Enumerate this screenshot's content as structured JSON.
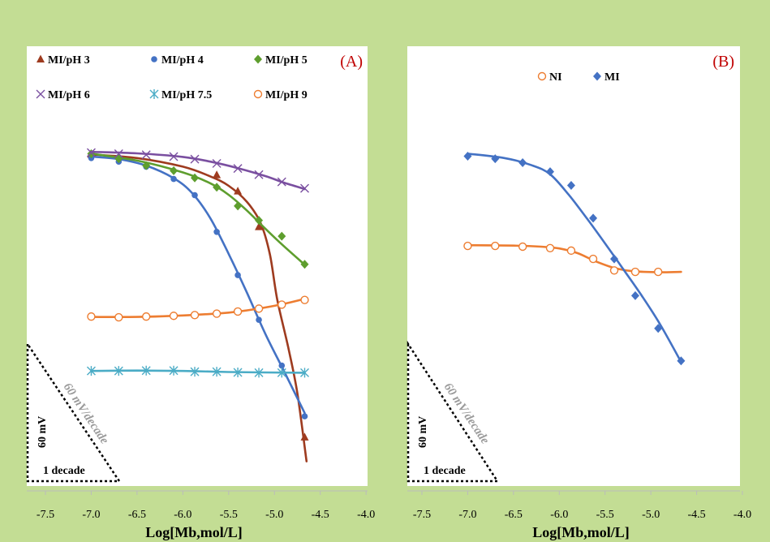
{
  "figure": {
    "background": "#c3dd94",
    "panel_background": "#ffffff",
    "series_colors": {
      "MI/pH 3": "#9e3b1f",
      "MI/pH 4": "#4472c4",
      "MI/pH 5": "#5e9e2e",
      "MI/pH 6": "#7a4fa0",
      "MI/pH 7.5": "#4bacc6",
      "MI/pH 9": "#ed7d31",
      "NI": "#ed7d31",
      "MI": "#4472c4"
    }
  },
  "chart_data": [
    {
      "type": "scatter",
      "panel_label": "(A)",
      "xlabel": "Log[Mb,mol/L]",
      "ylabel": "",
      "xlim": [
        -7.5,
        -4.0
      ],
      "xticks": [
        "-7.5",
        "-7.0",
        "-6.5",
        "-6.0",
        "-5.5",
        "-5.0",
        "-4.5",
        "-4.0"
      ],
      "ylim": [
        0,
        100
      ],
      "legend_position": "top",
      "slope_triangle": {
        "slope_label": "60 mV/decade",
        "height_label": "60 mV",
        "width_label": "1 decade"
      },
      "series": [
        {
          "name": "MI/pH 3",
          "marker": "triangle",
          "x": [
            -7.0,
            -5.63,
            -5.4,
            -5.17,
            -4.67
          ],
          "y": [
            75.6,
            69.9,
            65.4,
            55.5,
            -2.9
          ],
          "fit": [
            [
              -7.0,
              75.6
            ],
            [
              -6.5,
              74.6
            ],
            [
              -6.0,
              72.2
            ],
            [
              -5.7,
              69.5
            ],
            [
              -5.5,
              66.9
            ],
            [
              -5.3,
              62.4
            ],
            [
              -5.15,
              56.5
            ],
            [
              -5.05,
              47.9
            ],
            [
              -4.97,
              35.4
            ],
            [
              -4.85,
              22.1
            ],
            [
              -4.75,
              9.3
            ],
            [
              -4.65,
              -9.6
            ]
          ]
        },
        {
          "name": "MI/pH 4",
          "marker": "circle",
          "x": [
            -7.0,
            -6.7,
            -6.4,
            -6.1,
            -5.87,
            -5.63,
            -5.4,
            -5.17,
            -4.92,
            -4.67
          ],
          "y": [
            74.6,
            73.6,
            72.2,
            68.8,
            64.3,
            54.1,
            42.1,
            29.7,
            17.0,
            2.9
          ],
          "fit": [
            [
              -7.0,
              75.0
            ],
            [
              -6.7,
              74.3
            ],
            [
              -6.4,
              72.5
            ],
            [
              -6.1,
              69.0
            ],
            [
              -5.9,
              64.9
            ],
            [
              -5.7,
              57.9
            ],
            [
              -5.5,
              48.0
            ],
            [
              -5.3,
              37.2
            ],
            [
              -5.1,
              25.8
            ],
            [
              -4.9,
              15.7
            ],
            [
              -4.67,
              3.8
            ]
          ]
        },
        {
          "name": "MI/pH 5",
          "marker": "diamond",
          "x": [
            -7.0,
            -6.7,
            -6.4,
            -6.1,
            -5.87,
            -5.63,
            -5.4,
            -5.17,
            -4.92,
            -4.67
          ],
          "y": [
            75.8,
            74.4,
            72.5,
            71.1,
            69.1,
            66.5,
            61.3,
            57.3,
            52.9,
            45.1
          ],
          "fit": [
            [
              -7.0,
              75.8
            ],
            [
              -6.5,
              73.9
            ],
            [
              -6.0,
              70.6
            ],
            [
              -5.7,
              67.6
            ],
            [
              -5.5,
              64.4
            ],
            [
              -5.3,
              60.0
            ],
            [
              -5.1,
              55.0
            ],
            [
              -4.9,
              50.2
            ],
            [
              -4.67,
              45.0
            ]
          ]
        },
        {
          "name": "MI/pH 6",
          "marker": "x",
          "x": [
            -7.0,
            -6.7,
            -6.4,
            -6.1,
            -5.87,
            -5.63,
            -5.4,
            -5.17,
            -4.92,
            -4.67
          ],
          "y": [
            76.1,
            75.8,
            75.5,
            75.0,
            74.3,
            73.1,
            71.7,
            70.0,
            68.0,
            66.2
          ],
          "fit": [
            [
              -7.0,
              76.3
            ],
            [
              -6.5,
              75.9
            ],
            [
              -6.0,
              74.9
            ],
            [
              -5.7,
              73.6
            ],
            [
              -5.4,
              71.8
            ],
            [
              -5.1,
              69.6
            ],
            [
              -4.9,
              67.8
            ],
            [
              -4.67,
              66.0
            ]
          ]
        },
        {
          "name": "MI/pH 7.5",
          "marker": "asterisk",
          "x": [
            -7.0,
            -6.7,
            -6.4,
            -6.1,
            -5.87,
            -5.63,
            -5.4,
            -5.17,
            -4.92,
            -4.67
          ],
          "y": [
            15.5,
            15.5,
            15.6,
            15.6,
            15.3,
            15.3,
            15.1,
            15.0,
            15.0,
            15.0
          ],
          "fit": [
            [
              -7.0,
              15.5
            ],
            [
              -6.5,
              15.6
            ],
            [
              -6.0,
              15.5
            ],
            [
              -5.5,
              15.2
            ],
            [
              -4.67,
              15.0
            ]
          ]
        },
        {
          "name": "MI/pH 9",
          "marker": "open-circle",
          "x": [
            -7.0,
            -6.7,
            -6.4,
            -6.1,
            -5.87,
            -5.63,
            -5.4,
            -5.17,
            -4.92,
            -4.67
          ],
          "y": [
            30.6,
            30.4,
            30.6,
            30.8,
            31.0,
            31.4,
            32.0,
            32.8,
            33.9,
            35.2
          ],
          "fit": [
            [
              -7.0,
              30.5
            ],
            [
              -6.5,
              30.5
            ],
            [
              -6.0,
              30.9
            ],
            [
              -5.5,
              31.7
            ],
            [
              -5.2,
              32.7
            ],
            [
              -4.9,
              34.1
            ],
            [
              -4.67,
              35.5
            ]
          ]
        }
      ]
    },
    {
      "type": "scatter",
      "panel_label": "(B)",
      "xlabel": "Log[Mb,mol/L]",
      "ylabel": "",
      "xlim": [
        -7.5,
        -4.0
      ],
      "xticks": [
        "-7.5",
        "-7.0",
        "-6.5",
        "-6.0",
        "-5.5",
        "-5.0",
        "-4.5",
        "-4.0"
      ],
      "ylim": [
        0,
        100
      ],
      "legend_position": "top",
      "slope_triangle": {
        "slope_label": "60 mV/decade",
        "height_label": "60 mV",
        "width_label": "1 decade"
      },
      "series": [
        {
          "name": "NI",
          "marker": "open-circle",
          "x": [
            -7.0,
            -6.7,
            -6.4,
            -6.1,
            -5.87,
            -5.63,
            -5.4,
            -5.17,
            -4.92
          ],
          "y": [
            50.2,
            50.2,
            50.0,
            49.6,
            48.9,
            46.6,
            43.4,
            43.0,
            43.0
          ],
          "fit": [
            [
              -7.0,
              50.4
            ],
            [
              -6.5,
              50.3
            ],
            [
              -6.2,
              50.0
            ],
            [
              -6.0,
              49.5
            ],
            [
              -5.8,
              48.2
            ],
            [
              -5.6,
              45.9
            ],
            [
              -5.4,
              44.1
            ],
            [
              -5.2,
              43.2
            ],
            [
              -4.9,
              42.9
            ],
            [
              -4.67,
              43.0
            ]
          ]
        },
        {
          "name": "MI",
          "marker": "diamond",
          "x": [
            -7.0,
            -6.7,
            -6.4,
            -6.1,
            -5.87,
            -5.63,
            -5.4,
            -5.17,
            -4.92,
            -4.67
          ],
          "y": [
            75.1,
            74.4,
            73.3,
            70.8,
            67.0,
            57.9,
            46.6,
            36.4,
            27.3,
            18.3
          ],
          "fit": [
            [
              -7.0,
              75.8
            ],
            [
              -6.6,
              74.6
            ],
            [
              -6.3,
              72.6
            ],
            [
              -6.1,
              70.1
            ],
            [
              -5.9,
              64.5
            ],
            [
              -5.7,
              57.9
            ],
            [
              -5.5,
              50.9
            ],
            [
              -5.3,
              43.7
            ],
            [
              -5.1,
              36.4
            ],
            [
              -4.9,
              28.5
            ],
            [
              -4.67,
              18.0
            ]
          ]
        }
      ]
    }
  ]
}
